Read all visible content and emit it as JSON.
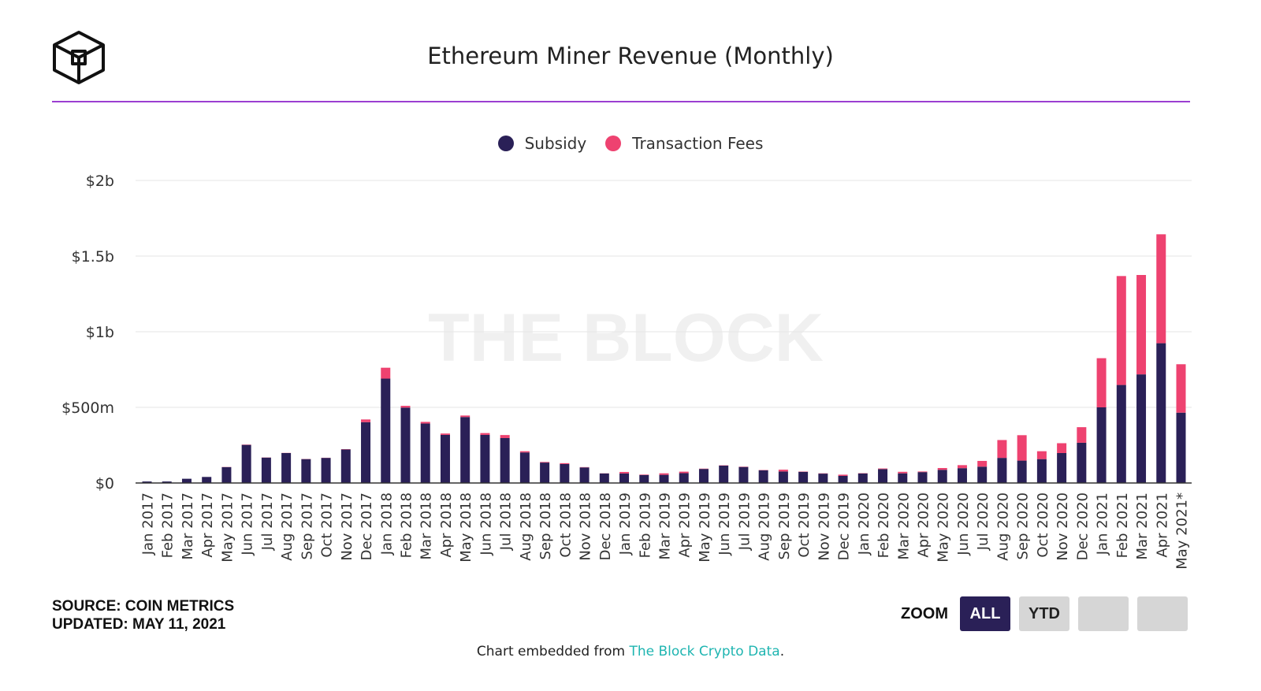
{
  "title": "Ethereum Miner Revenue (Monthly)",
  "watermark": "THE BLOCK",
  "source_text": "SOURCE: COIN METRICS",
  "updated_text": "UPDATED: MAY 11, 2021",
  "zoom": {
    "label": "ZOOM",
    "buttons": [
      "ALL",
      "YTD",
      "",
      ""
    ],
    "active": "ALL"
  },
  "credit": {
    "prefix": "Chart embedded from ",
    "link": "The Block Crypto Data",
    "suffix": "."
  },
  "colors": {
    "subsidy": "#2a2057",
    "fees": "#ee4270",
    "accent_rule": "#9b3ed1",
    "link": "#1fb5b1"
  },
  "chart_data": {
    "type": "bar",
    "stacked": true,
    "title": "Ethereum Miner Revenue (Monthly)",
    "ylim": [
      0,
      2000000000
    ],
    "yticks": [
      0,
      500000000,
      1000000000,
      1500000000,
      2000000000
    ],
    "ytick_labels": [
      "$0",
      "$500m",
      "$1b",
      "$1.5b",
      "$2b"
    ],
    "legend_position": "top-center",
    "grid": true,
    "categories": [
      "Jan 2017",
      "Feb 2017",
      "Mar 2017",
      "Apr 2017",
      "May 2017",
      "Jun 2017",
      "Jul 2017",
      "Aug 2017",
      "Sep 2017",
      "Oct 2017",
      "Nov 2017",
      "Dec 2017",
      "Jan 2018",
      "Feb 2018",
      "Mar 2018",
      "Apr 2018",
      "May 2018",
      "Jun 2018",
      "Jul 2018",
      "Aug 2018",
      "Sep 2018",
      "Oct 2018",
      "Nov 2018",
      "Dec 2018",
      "Jan 2019",
      "Feb 2019",
      "Mar 2019",
      "Apr 2019",
      "May 2019",
      "Jun 2019",
      "Jul 2019",
      "Aug 2019",
      "Sep 2019",
      "Oct 2019",
      "Nov 2019",
      "Dec 2019",
      "Jan 2020",
      "Feb 2020",
      "Mar 2020",
      "Apr 2020",
      "May 2020",
      "Jun 2020",
      "Jul 2020",
      "Aug 2020",
      "Sep 2020",
      "Oct 2020",
      "Nov 2020",
      "Dec 2020",
      "Jan 2021",
      "Feb 2021",
      "Mar 2021",
      "Apr 2021",
      "May 2021*"
    ],
    "series": [
      {
        "name": "Subsidy",
        "values": [
          10000000,
          10000000,
          28000000,
          40000000,
          105000000,
          252000000,
          168000000,
          198000000,
          158000000,
          166000000,
          222000000,
          402000000,
          690000000,
          498000000,
          393000000,
          318000000,
          436000000,
          318000000,
          297000000,
          202000000,
          135000000,
          125000000,
          103000000,
          63000000,
          63000000,
          53000000,
          54000000,
          65000000,
          93000000,
          115000000,
          106000000,
          84000000,
          76000000,
          74000000,
          62000000,
          47000000,
          63000000,
          92000000,
          64000000,
          72000000,
          87000000,
          98000000,
          108000000,
          166000000,
          148000000,
          158000000,
          198000000,
          266000000,
          500000000,
          648000000,
          718000000,
          924000000,
          465000000
        ]
      },
      {
        "name": "Transaction Fees",
        "values": [
          0,
          0,
          0,
          0,
          1000000,
          2000000,
          1000000,
          1000000,
          1000000,
          1000000,
          2000000,
          18000000,
          72000000,
          12000000,
          11000000,
          9000000,
          10000000,
          12000000,
          20000000,
          8000000,
          4000000,
          6000000,
          2000000,
          1000000,
          10000000,
          3000000,
          10000000,
          10000000,
          2000000,
          2000000,
          2000000,
          2000000,
          12000000,
          2000000,
          2000000,
          8000000,
          2000000,
          4000000,
          10000000,
          4000000,
          12000000,
          20000000,
          38000000,
          118000000,
          168000000,
          52000000,
          65000000,
          103000000,
          325000000,
          720000000,
          657000000,
          720000000,
          320000000
        ]
      }
    ]
  }
}
